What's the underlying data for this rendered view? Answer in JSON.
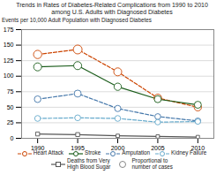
{
  "chart_data": {
    "type": "line",
    "title": "Trends in Rates of Diabetes-Related Complications from 1990 to 2010\namong U.S. Adults with Diagnosed Diabetes",
    "ylabel": "Events per 10,000 Adult Population with Diagnosed Diabetes",
    "x": [
      1990,
      1995,
      2000,
      2005,
      2010
    ],
    "xlim": [
      1988,
      2012
    ],
    "xticks": [
      1990,
      1995,
      2000,
      2005,
      2010
    ],
    "ylim": [
      0,
      175
    ],
    "yticks": [
      0,
      25,
      50,
      75,
      100,
      125,
      150,
      175
    ],
    "grid": true,
    "legend": "bottom",
    "annotations": [
      "Proportional to\nnumber of cases"
    ],
    "series": [
      {
        "name": "Heart Attack",
        "color": "#cc4400",
        "line_style": "dashed",
        "marker": "circle",
        "values": [
          135,
          143,
          107,
          65,
          50
        ],
        "sizes": [
          14,
          16,
          13,
          12,
          11
        ]
      },
      {
        "name": "Stroke",
        "color": "#1a5c1a",
        "line_style": "solid",
        "marker": "circle",
        "values": [
          115,
          117,
          83,
          63,
          54
        ],
        "sizes": [
          13,
          13,
          11,
          10,
          10
        ]
      },
      {
        "name": "Amputation",
        "color": "#4477aa",
        "line_style": "dashed",
        "marker": "circle",
        "values": [
          63,
          72,
          48,
          35,
          28
        ],
        "sizes": [
          9,
          10,
          8,
          7,
          7
        ]
      },
      {
        "name": "Kidney Failure",
        "color": "#66aacc",
        "line_style": "dashed",
        "marker": "circle",
        "values": [
          32,
          33,
          32,
          26,
          27
        ],
        "sizes": [
          7,
          7,
          7,
          6,
          6
        ]
      },
      {
        "name": "Deaths from Very\nHigh Blood Sugar",
        "color": "#555555",
        "line_style": "solid",
        "marker": "square",
        "values": [
          7,
          6,
          4,
          3,
          2
        ],
        "sizes": [
          4,
          4,
          3,
          3,
          3
        ]
      }
    ]
  }
}
